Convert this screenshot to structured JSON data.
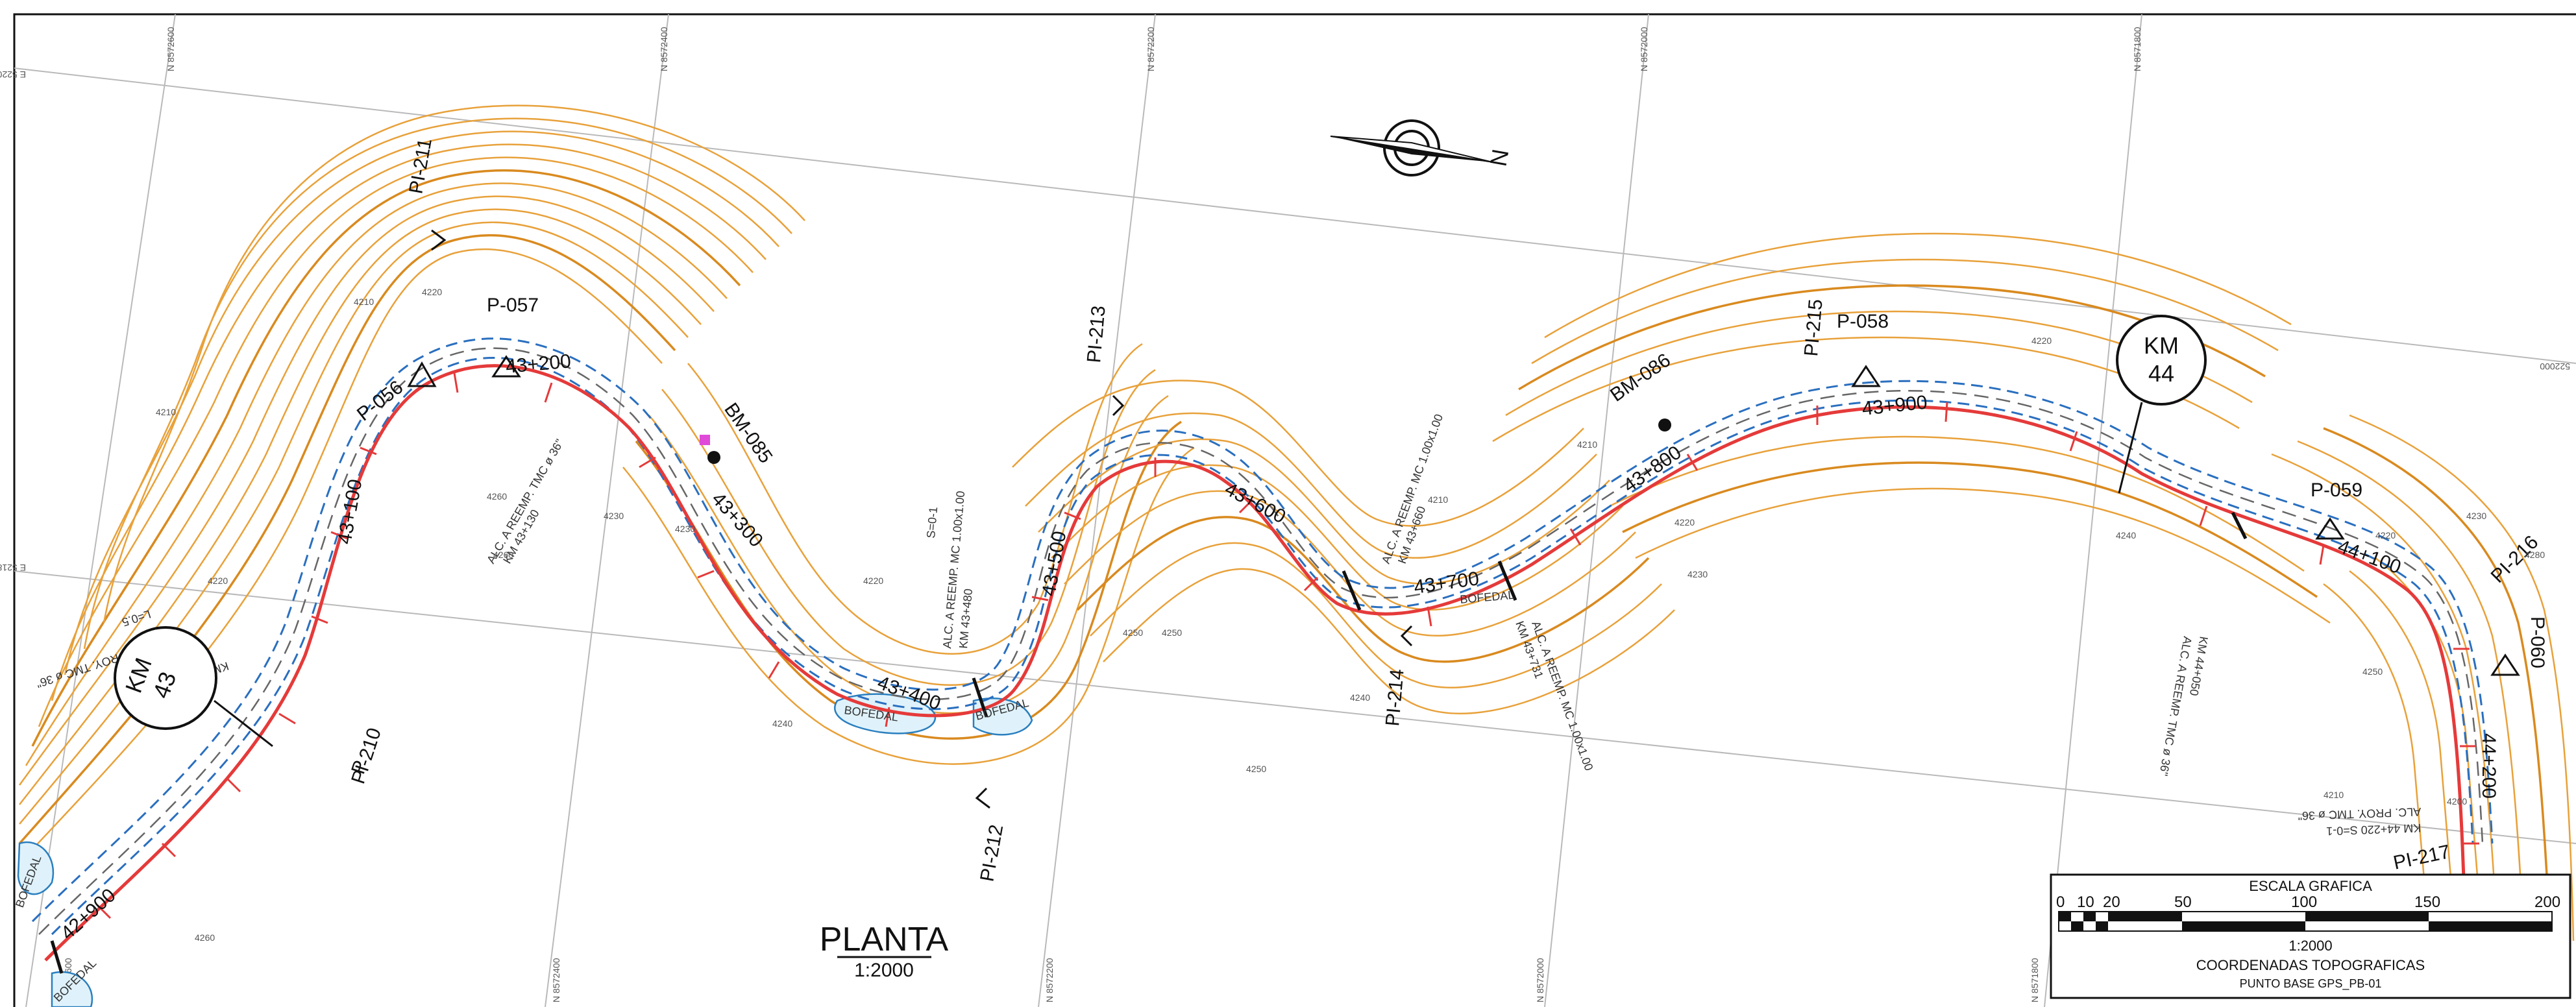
{
  "sheet": {
    "title": "PLANTA",
    "scale_text": "1:2000"
  },
  "scale_box": {
    "heading": "ESCALA GRAFICA",
    "ticks": [
      "0",
      "10",
      "20",
      "50",
      "100",
      "150",
      "200"
    ],
    "ratio": "1:2000",
    "coord_title": "COORDENADAS TOPOGRAFICAS",
    "base_point": "PUNTO BASE GPS_PB-01"
  },
  "grid_labels": {
    "top": [
      "N 8572600",
      "N 8572400",
      "N 8572200",
      "N 8572000",
      "N 8571800"
    ],
    "bottom": [
      "N 8572600",
      "N 8572400",
      "N 8572200",
      "N 8572000",
      "N 8571800"
    ],
    "left": [
      "E 522000",
      "E 521800"
    ],
    "right": [
      "522000"
    ]
  },
  "north_label": "N",
  "km_markers": [
    {
      "label": "KM",
      "value": "43"
    },
    {
      "label": "KM",
      "value": "44"
    }
  ],
  "stations": [
    "42+900",
    "43+100",
    "43+200",
    "43+300",
    "43+400",
    "43+500",
    "43+600",
    "43+700",
    "43+800",
    "43+900",
    "44+100",
    "44+200"
  ],
  "pi_labels": [
    "PI-210",
    "PI-211",
    "PI-212",
    "PI-213",
    "PI-214",
    "PI-215",
    "PI-216",
    "PI-217"
  ],
  "p_labels": [
    "P-056",
    "P-057",
    "P-058",
    "P-059",
    "P-060",
    "P"
  ],
  "bm_labels": [
    "BM-085",
    "BM-086"
  ],
  "bofedal_labels": [
    "BOFEDAL",
    "BOFEDAL",
    "BOFEDAL",
    "BOFEDAL",
    "BOFEDAL"
  ],
  "contour_elevations": [
    "4210",
    "4220",
    "4220",
    "4230",
    "4240",
    "4250",
    "4260",
    "4210",
    "4220",
    "4230",
    "4240",
    "4250",
    "4210",
    "4220",
    "4230",
    "4250",
    "4260",
    "4210",
    "4220",
    "4240",
    "4250",
    "4200",
    "4210",
    "4220",
    "4230",
    "4260",
    "4280"
  ],
  "culvert_notes": [
    "ALC. PROY. TMC ø 36\"",
    "L=0.5",
    "KM 44+020 S=0-1",
    "ALC. A REEMP. TMC ø 36\"",
    "KM 43+130",
    "ALC. A REEMP. MC 1.00x1.00",
    "KM 43+480",
    "S=0-1",
    "ALC. A REEMP. MC 1.00x1.00",
    "KM 43+660",
    "ALC. A REEMP. MC 1.00x1.00",
    "KM 43+731",
    "ALC. A REEMP. TMC ø 36\"",
    "KM 44+050",
    "ALC. PROY. TMC ø 36\"",
    "KM 44+220 S=0-1"
  ]
}
